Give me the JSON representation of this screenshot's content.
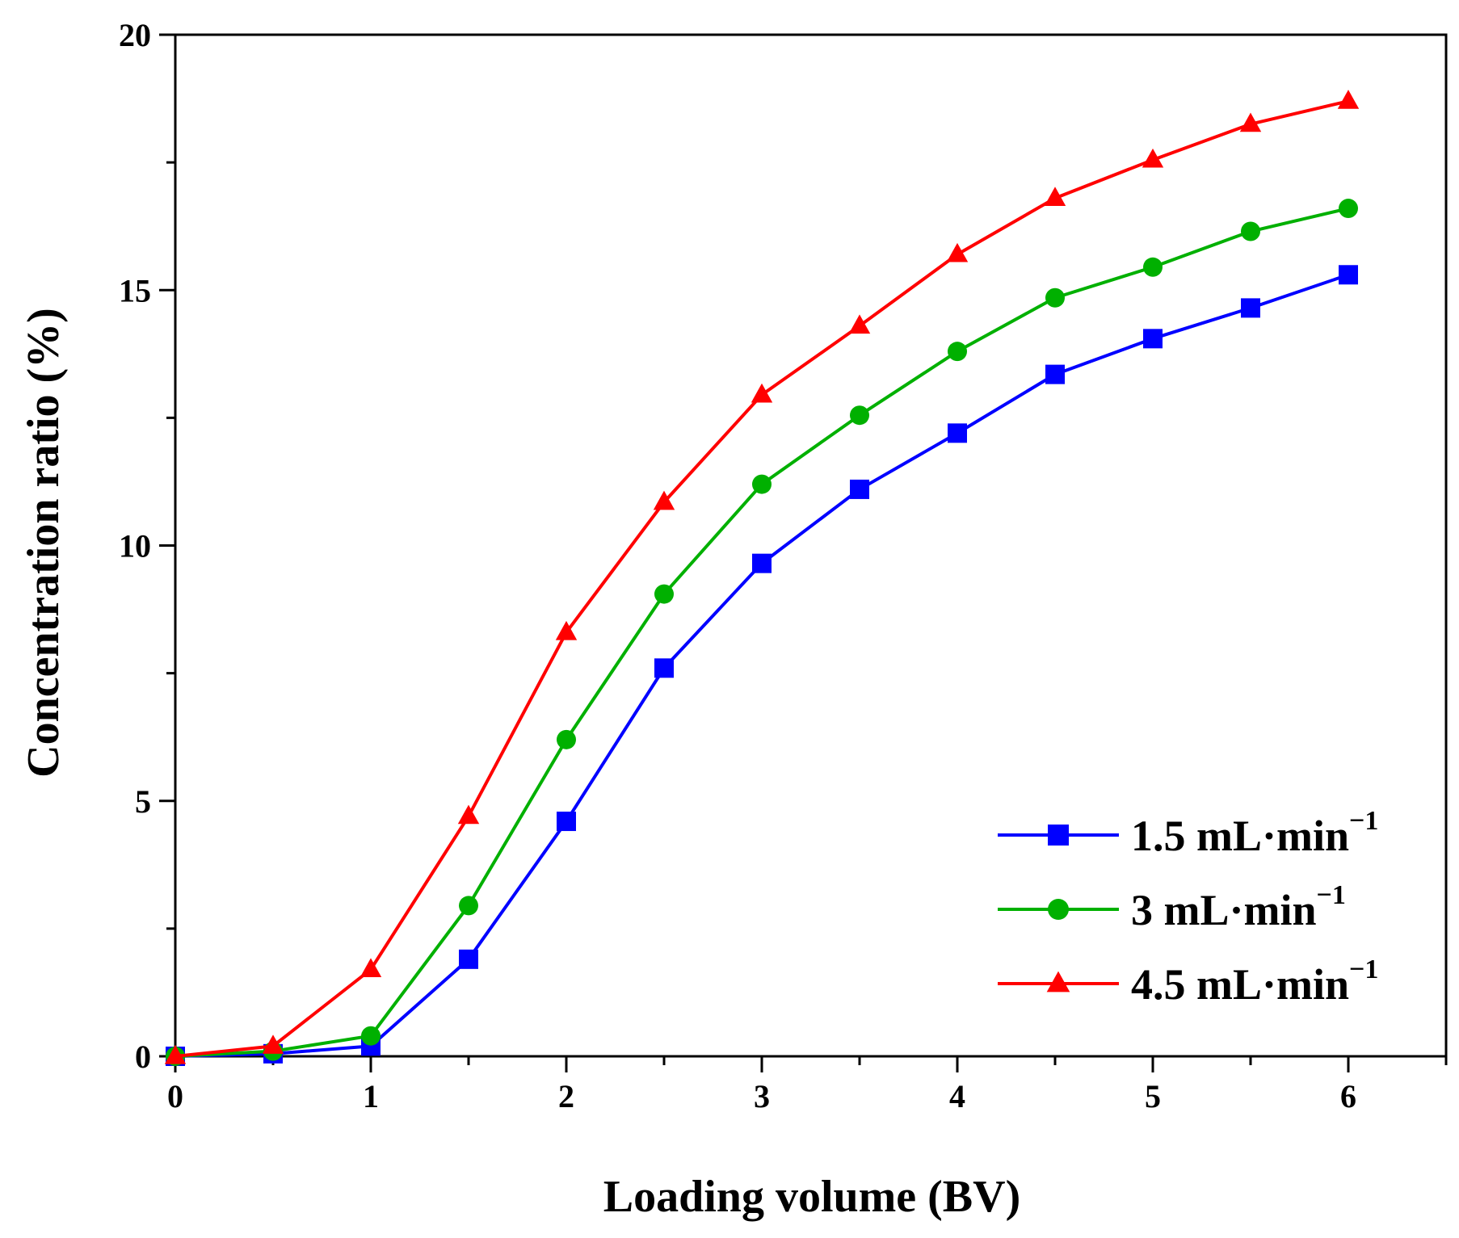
{
  "chart_data": {
    "type": "line",
    "title": "",
    "xlabel": "Loading volume (BV)",
    "ylabel": "Concentration ratio (%)",
    "xlim": [
      0,
      6.5
    ],
    "ylim": [
      0,
      20
    ],
    "xticks": [
      0,
      1,
      2,
      3,
      4,
      5,
      6
    ],
    "xtick_labels": [
      "0",
      "1",
      "2",
      "3",
      "4",
      "5",
      "6"
    ],
    "yticks": [
      0,
      5,
      10,
      15,
      20
    ],
    "ytick_labels": [
      "0",
      "5",
      "10",
      "15",
      "20"
    ],
    "grid": false,
    "legend_position": "bottom-right",
    "x": [
      0,
      0.5,
      1,
      1.5,
      2,
      2.5,
      3,
      3.5,
      4,
      4.5,
      5,
      5.5,
      6
    ],
    "series": [
      {
        "name": "1.5 mL·min−1",
        "label_main": "1.5 mL·min",
        "label_sup": "−1",
        "color": "#0000ff",
        "marker": "square",
        "values": [
          0,
          0.05,
          0.2,
          1.9,
          4.6,
          7.6,
          9.65,
          11.1,
          12.2,
          13.35,
          14.05,
          14.65,
          15.3
        ]
      },
      {
        "name": "3 mL·min−1",
        "label_main": "3 mL·min",
        "label_sup": "−1",
        "color": "#00b000",
        "marker": "circle",
        "values": [
          0,
          0.1,
          0.4,
          2.95,
          6.2,
          9.05,
          11.2,
          12.55,
          13.8,
          14.85,
          15.45,
          16.15,
          16.6
        ]
      },
      {
        "name": "4.5 mL·min−1",
        "label_main": "4.5 mL·min",
        "label_sup": "−1",
        "color": "#ff0000",
        "marker": "triangle",
        "values": [
          0,
          0.2,
          1.7,
          4.7,
          8.3,
          10.85,
          12.95,
          14.3,
          15.7,
          16.8,
          17.55,
          18.25,
          18.7
        ]
      }
    ]
  }
}
